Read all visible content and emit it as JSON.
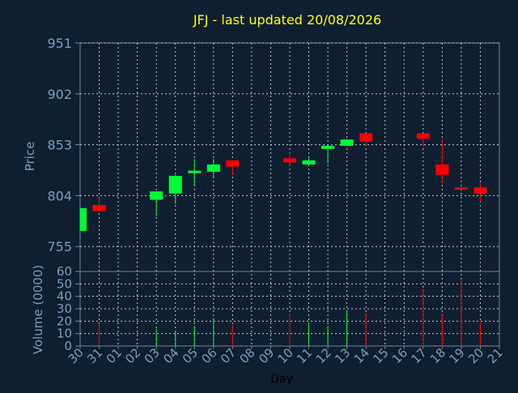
{
  "chart_data": {
    "type": "candlestick",
    "title": "JFJ - last updated 20/08/2026",
    "price_panel": {
      "ylabel": "Price",
      "ylim": [
        731,
        951
      ],
      "yticks": [
        755,
        804,
        853,
        902,
        951
      ],
      "grid": true
    },
    "volume_panel": {
      "ylabel": "Volume (0000)",
      "ylim": [
        0,
        60
      ],
      "yticks": [
        0,
        10,
        20,
        30,
        40,
        50,
        60
      ],
      "grid": true
    },
    "xlabel": "Day",
    "x_ticks": [
      "30",
      "31",
      "01",
      "02",
      "03",
      "04",
      "05",
      "06",
      "07",
      "08",
      "09",
      "10",
      "11",
      "12",
      "13",
      "14",
      "15",
      "16",
      "17",
      "18",
      "19",
      "20",
      "21"
    ],
    "colors": {
      "up": "#00ff33",
      "down": "#ff0000",
      "background": "#0f1f30",
      "axis": "#6c86a2",
      "grid": "#b6c6d8",
      "title": "#ffff00"
    },
    "candles": [
      {
        "day": "30",
        "open": 770,
        "close": 792,
        "high": 792,
        "low": 770,
        "volume": 0
      },
      {
        "day": "31",
        "open": 795,
        "close": 789,
        "high": 802,
        "low": 789,
        "volume": 18
      },
      {
        "day": "03",
        "open": 800,
        "close": 808,
        "high": 808,
        "low": 784,
        "volume": 14
      },
      {
        "day": "04",
        "open": 806,
        "close": 823,
        "high": 824,
        "low": 796,
        "volume": 12
      },
      {
        "day": "05",
        "open": 826,
        "close": 828,
        "high": 839,
        "low": 814,
        "volume": 16
      },
      {
        "day": "06",
        "open": 827,
        "close": 834,
        "high": 839,
        "low": 822,
        "volume": 22
      },
      {
        "day": "07",
        "open": 838,
        "close": 832,
        "high": 838,
        "low": 824,
        "volume": 17
      },
      {
        "day": "10",
        "open": 840,
        "close": 836,
        "high": 845,
        "low": 833,
        "volume": 25
      },
      {
        "day": "11",
        "open": 834,
        "close": 838,
        "high": 840,
        "low": 834,
        "volume": 19
      },
      {
        "day": "12",
        "open": 849,
        "close": 852,
        "high": 852,
        "low": 835,
        "volume": 16
      },
      {
        "day": "13",
        "open": 852,
        "close": 858,
        "high": 858,
        "low": 852,
        "volume": 28
      },
      {
        "day": "14",
        "open": 864,
        "close": 856,
        "high": 864,
        "low": 852,
        "volume": 26
      },
      {
        "day": "17",
        "open": 864,
        "close": 859,
        "high": 864,
        "low": 851,
        "volume": 46
      },
      {
        "day": "18",
        "open": 834,
        "close": 824,
        "high": 858,
        "low": 816,
        "volume": 25
      },
      {
        "day": "19",
        "open": 812,
        "close": 810,
        "high": 812,
        "low": 810,
        "volume": 53
      },
      {
        "day": "20",
        "open": 812,
        "close": 806,
        "high": 816,
        "low": 798,
        "volume": 19
      }
    ]
  }
}
